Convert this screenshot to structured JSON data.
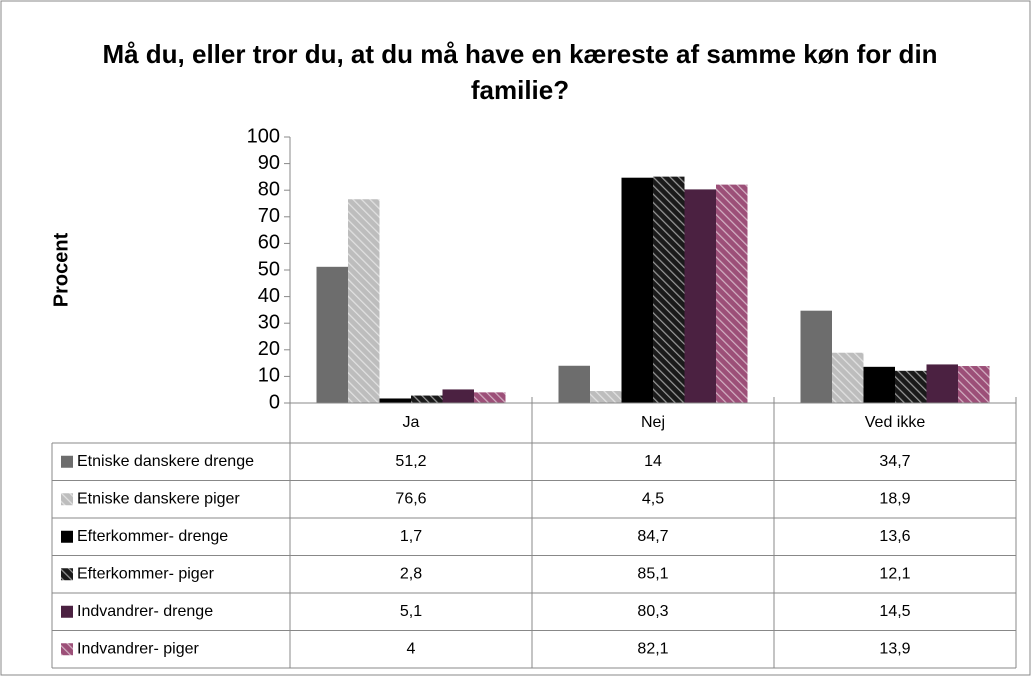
{
  "chart_data": {
    "type": "bar",
    "title": "Må du, eller tror du, at du må have en kæreste af samme køn for din familie?",
    "y_label": "Procent",
    "categories": [
      "Ja",
      "Nej",
      "Ved ikke"
    ],
    "ylim": [
      0,
      100
    ],
    "yticks": [
      0,
      10,
      20,
      30,
      40,
      50,
      60,
      70,
      80,
      90,
      100
    ],
    "grid": false,
    "series": [
      {
        "name": "Etniske danskere drenge",
        "color": "#6d6d6d",
        "hatch": false,
        "values": [
          51.2,
          14,
          34.7
        ],
        "value_labels": [
          "51,2",
          "14",
          "34,7"
        ]
      },
      {
        "name": "Etniske danskere piger",
        "color": "#bdbdbd",
        "hatch": true,
        "values": [
          76.6,
          4.5,
          18.9
        ],
        "value_labels": [
          "76,6",
          "4,5",
          "18,9"
        ]
      },
      {
        "name": "Efterkommer- drenge",
        "color": "#000000",
        "hatch": false,
        "values": [
          1.7,
          84.7,
          13.6
        ],
        "value_labels": [
          "1,7",
          "84,7",
          "13,6"
        ]
      },
      {
        "name": "Efterkommer- piger",
        "color": "#1a1a1a",
        "hatch": true,
        "values": [
          2.8,
          85.1,
          12.1
        ],
        "value_labels": [
          "2,8",
          "85,1",
          "12,1"
        ]
      },
      {
        "name": "Indvandrer- drenge",
        "color": "#4b2141",
        "hatch": false,
        "values": [
          5.1,
          80.3,
          14.5
        ],
        "value_labels": [
          "5,1",
          "80,3",
          "14,5"
        ]
      },
      {
        "name": "Indvandrer- piger",
        "color": "#9c4f78",
        "hatch": true,
        "values": [
          4,
          82.1,
          13.9
        ],
        "value_labels": [
          "4",
          "82,1",
          "13,9"
        ]
      }
    ]
  }
}
